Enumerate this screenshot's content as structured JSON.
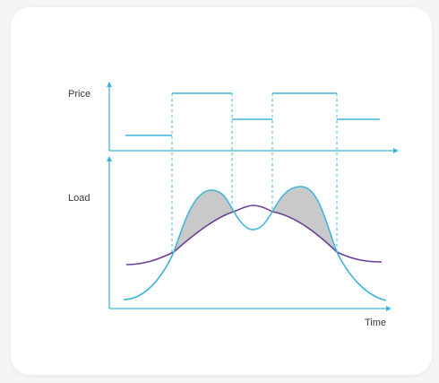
{
  "diagram": {
    "price_axis_label": "Price",
    "load_axis_label": "Load",
    "time_axis_label": "Time"
  },
  "colors": {
    "card_background": "#ffffff",
    "page_background": "#f4f5f7",
    "price_line": "#3fb6d9",
    "load_curve_peaky": "#3fb6d9",
    "load_curve_smoothed": "#6a3d9a",
    "peak_shading": "#c9c9c9",
    "axis": "#3fb6d9",
    "label_text": "#333a40"
  }
}
